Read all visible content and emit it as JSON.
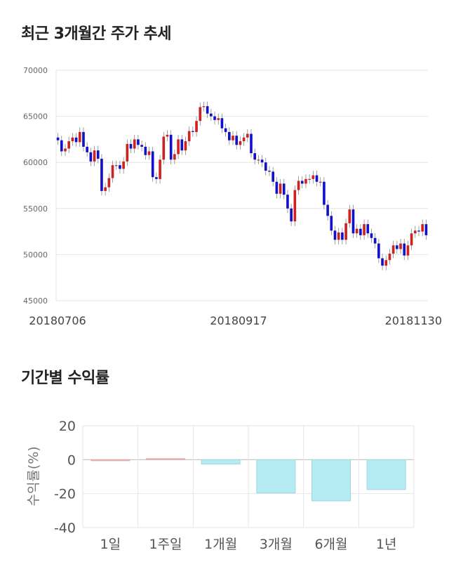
{
  "sections": {
    "price_title": "최근 3개월간 주가 추세",
    "return_title": "기간별 수익률"
  },
  "colors": {
    "up": "#cc2222",
    "down": "#1111cc",
    "bar_positive": "#f4c0c0",
    "bar_negative": "#b5ebf2",
    "grid": "#e6e6e6"
  },
  "chart_data": [
    {
      "type": "candlestick",
      "title": "",
      "ylim": [
        45000,
        70000
      ],
      "yticks": [
        45000,
        50000,
        55000,
        60000,
        65000,
        70000
      ],
      "xtick_labels": [
        "20180706",
        "20180917",
        "20181130"
      ],
      "grid": true,
      "closes": [
        62400,
        61200,
        61500,
        62300,
        62700,
        62200,
        63300,
        61700,
        61100,
        60100,
        61300,
        60400,
        56900,
        57300,
        58300,
        59700,
        59700,
        59300,
        60100,
        62000,
        61500,
        62500,
        61900,
        61700,
        60800,
        61200,
        58400,
        58200,
        60300,
        62800,
        63000,
        60300,
        60900,
        62500,
        61300,
        62300,
        63400,
        63300,
        64500,
        66000,
        66100,
        65300,
        65000,
        64600,
        64800,
        63700,
        63300,
        62400,
        62900,
        61900,
        62300,
        62700,
        63100,
        61000,
        60300,
        60300,
        60000,
        59100,
        59000,
        57900,
        56600,
        57700,
        56500,
        55000,
        53600,
        57000,
        58000,
        57700,
        58200,
        58200,
        58600,
        57900,
        57900,
        55400,
        54200,
        52600,
        51600,
        52400,
        51600,
        53400,
        54900,
        52300,
        52800,
        52100,
        53300,
        52300,
        51800,
        51200,
        49600,
        48800,
        49400,
        50100,
        51000,
        50600,
        51200,
        49900,
        51000,
        52300,
        52600,
        52500,
        53300,
        52100
      ],
      "up_color": "#cc2222",
      "down_color": "#1111cc"
    },
    {
      "type": "bar",
      "title": "",
      "categories": [
        "1일",
        "1주일",
        "1개월",
        "3개월",
        "6개월",
        "1년"
      ],
      "values": [
        0.0,
        0.6,
        -2.6,
        -19.6,
        -24.3,
        -17.6
      ],
      "ylabel": "수익률(%)",
      "ylim": [
        -40,
        20
      ],
      "yticks": [
        20,
        0,
        -20,
        -40
      ],
      "grid": true
    }
  ]
}
